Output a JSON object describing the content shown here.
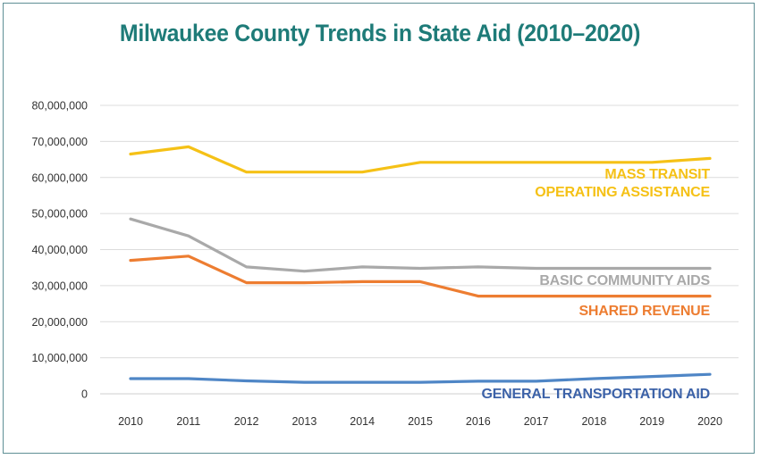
{
  "chart_data": {
    "type": "line",
    "title": "Milwaukee County Trends in State Aid (2010–2020)",
    "xlabel": "",
    "ylabel": "",
    "x": [
      "2010",
      "2011",
      "2012",
      "2013",
      "2014",
      "2015",
      "2016",
      "2017",
      "2018",
      "2019",
      "2020"
    ],
    "ylim": [
      0,
      80000000
    ],
    "yticks": [
      "0",
      "10,000,000",
      "20,000,000",
      "30,000,000",
      "40,000,000",
      "50,000,000",
      "60,000,000",
      "70,000,000",
      "80,000,000"
    ],
    "grid": true,
    "series": [
      {
        "name": "MASS TRANSIT OPERATING ASSISTANCE",
        "label_lines": [
          "MASS TRANSIT",
          "OPERATING ASSISTANCE"
        ],
        "color": "#f5c116",
        "values": [
          66500000,
          68500000,
          61500000,
          61500000,
          61500000,
          64200000,
          64200000,
          64200000,
          64200000,
          64200000,
          65300000
        ]
      },
      {
        "name": "BASIC COMMUNITY AIDS",
        "label_lines": [
          "BASIC COMMUNITY AIDS"
        ],
        "color": "#a9a9a9",
        "values": [
          48500000,
          43800000,
          35200000,
          34000000,
          35200000,
          34800000,
          35200000,
          34800000,
          34800000,
          34800000,
          34800000
        ]
      },
      {
        "name": "SHARED REVENUE",
        "label_lines": [
          "SHARED REVENUE"
        ],
        "color": "#ed7d31",
        "values": [
          37000000,
          38200000,
          30800000,
          30800000,
          31100000,
          31100000,
          27100000,
          27100000,
          27100000,
          27100000,
          27100000
        ]
      },
      {
        "name": "GENERAL TRANSPORTATION AID",
        "label_lines": [
          "GENERAL TRANSPORTATION AID"
        ],
        "color": "#4f86c6",
        "label_color": "#3c62a8",
        "values": [
          4200000,
          4200000,
          3600000,
          3200000,
          3200000,
          3200000,
          3500000,
          3500000,
          4200000,
          4800000,
          5400000
        ]
      }
    ]
  }
}
